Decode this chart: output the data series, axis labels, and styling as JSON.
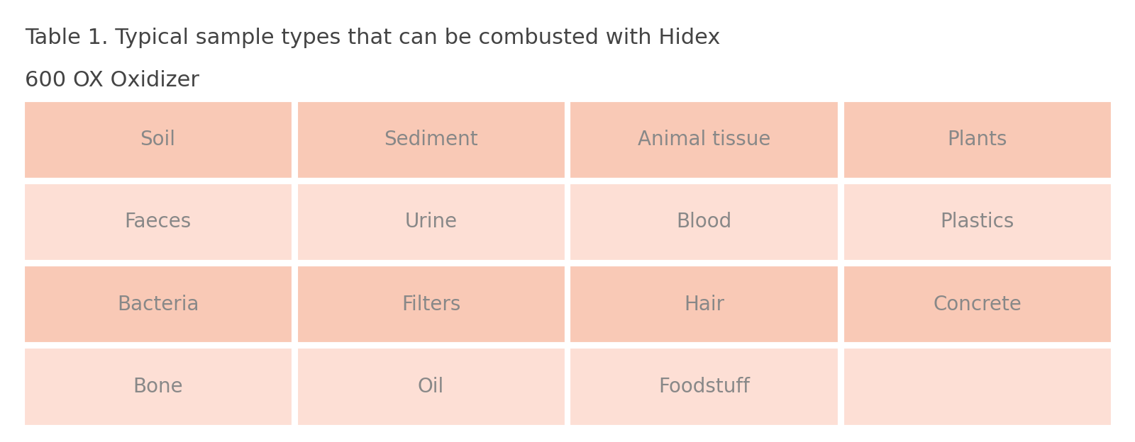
{
  "title_line1": "Table 1. Typical sample types that can be combusted with Hidex",
  "title_line2": "600 OX Oxidizer",
  "title_fontsize": 22,
  "title_color": "#444444",
  "table_data": [
    [
      "Soil",
      "Sediment",
      "Animal tissue",
      "Plants"
    ],
    [
      "Faeces",
      "Urine",
      "Blood",
      "Plastics"
    ],
    [
      "Bacteria",
      "Filters",
      "Hair",
      "Concrete"
    ],
    [
      "Bone",
      "Oil",
      "Foodstuff",
      ""
    ]
  ],
  "row_colors": [
    "#F9C9B6",
    "#FDDFD5",
    "#F9C9B6",
    "#FDDFD5"
  ],
  "text_color": "#888888",
  "border_color": "#FFFFFF",
  "background_color": "#FFFFFF",
  "cell_fontsize": 20,
  "n_cols": 4,
  "n_rows": 4,
  "border_width": 3
}
